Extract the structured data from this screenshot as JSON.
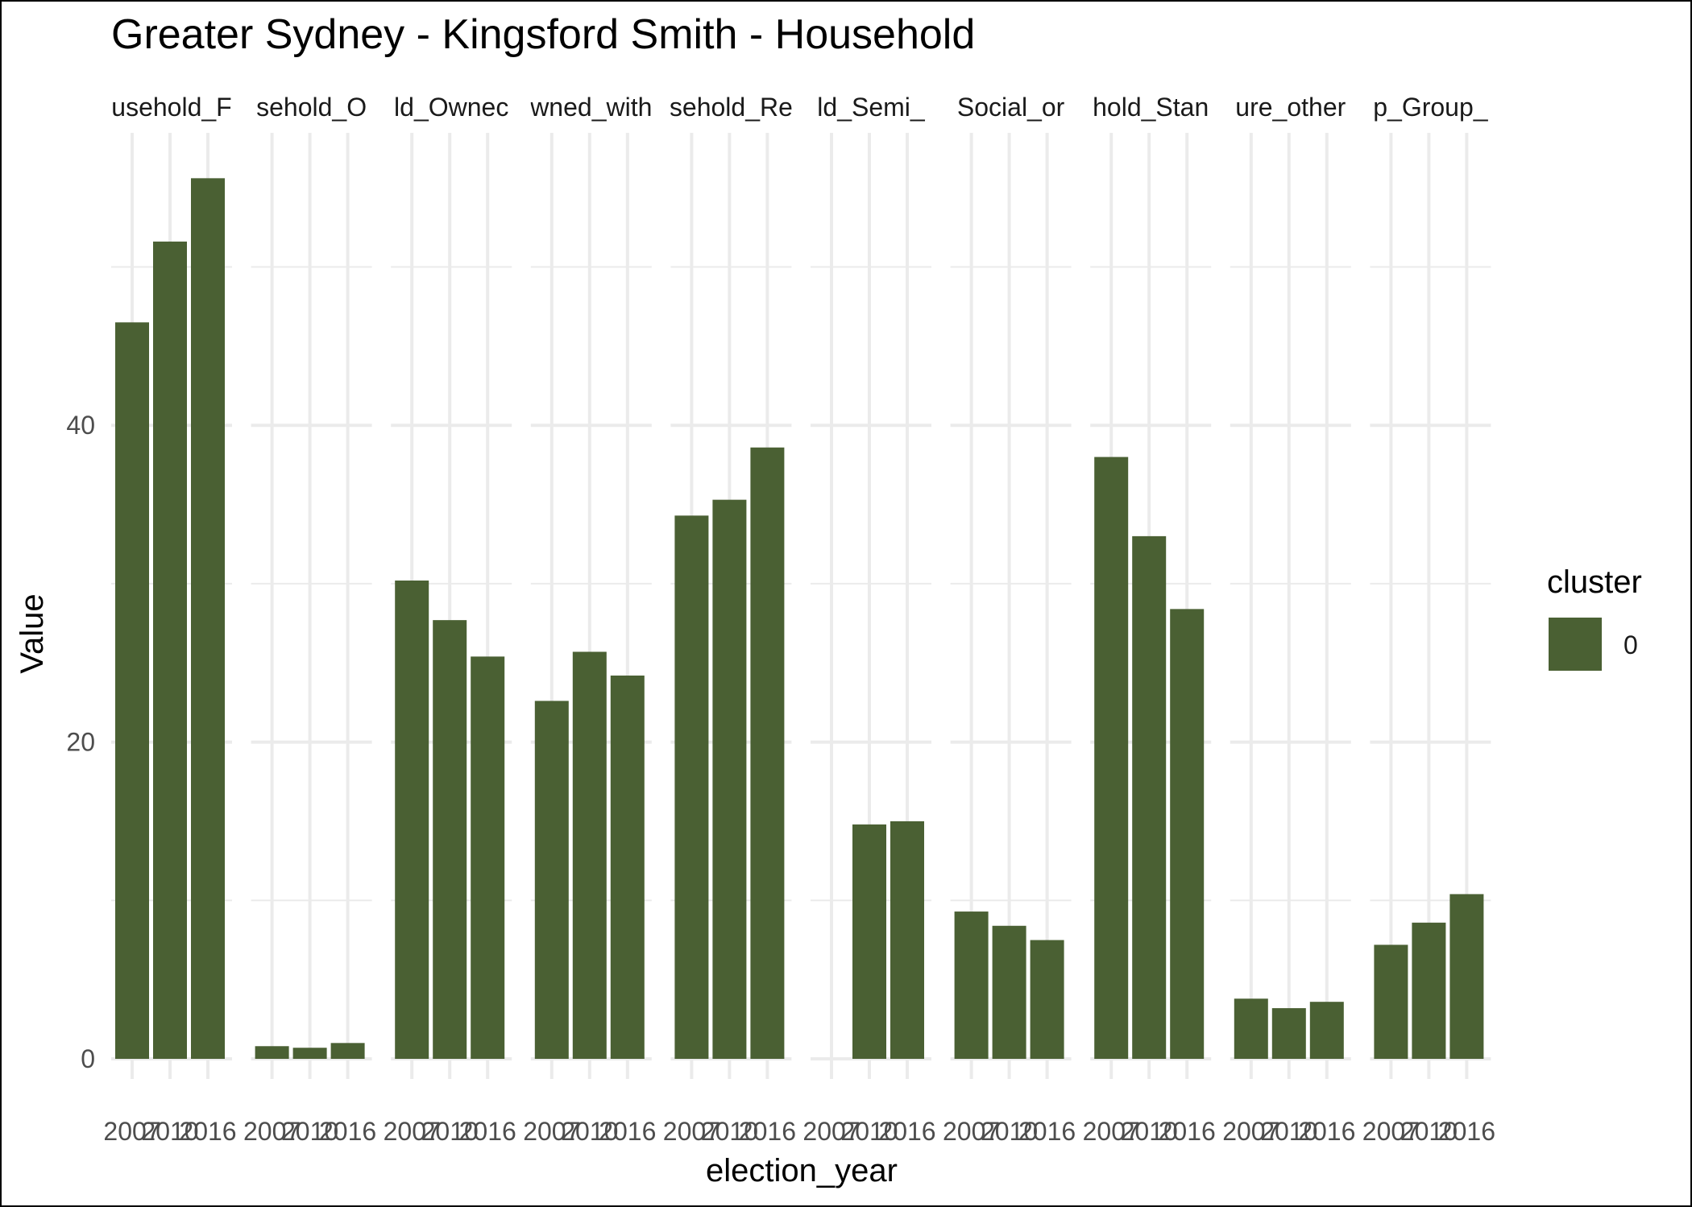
{
  "chart_data": {
    "type": "bar",
    "title": "Greater Sydney - Kingsford Smith - Household",
    "xlabel": "election_year",
    "ylabel": "Value",
    "ylim": [
      0,
      56
    ],
    "yticks": [
      0,
      20,
      40
    ],
    "grid": true,
    "legend_position": "right",
    "legend_title": "cluster",
    "colors": {
      "bar": "#4a6033",
      "grid": "#ebebeb",
      "frame": "#000000"
    },
    "years": [
      "2007",
      "2010",
      "2016"
    ],
    "facets": [
      {
        "label": "usehold_F",
        "values": [
          46.5,
          51.6,
          55.6
        ]
      },
      {
        "label": "sehold_O",
        "values": [
          0.8,
          0.7,
          1.0
        ]
      },
      {
        "label": "ld_Ownec",
        "values": [
          30.2,
          27.7,
          25.4
        ]
      },
      {
        "label": "wned_with",
        "values": [
          22.6,
          25.7,
          24.2
        ]
      },
      {
        "label": "sehold_Re",
        "values": [
          34.3,
          35.3,
          38.6
        ]
      },
      {
        "label": "ld_Semi_",
        "values": [
          null,
          14.8,
          15.0
        ]
      },
      {
        "label": "Social_or",
        "values": [
          9.3,
          8.4,
          7.5
        ]
      },
      {
        "label": "hold_Stan",
        "values": [
          38.0,
          33.0,
          28.4
        ]
      },
      {
        "label": "ure_other",
        "values": [
          3.8,
          3.2,
          3.6
        ]
      },
      {
        "label": "p_Group_",
        "values": [
          7.2,
          8.6,
          10.4
        ]
      }
    ],
    "series": [
      {
        "name": "0"
      }
    ]
  }
}
